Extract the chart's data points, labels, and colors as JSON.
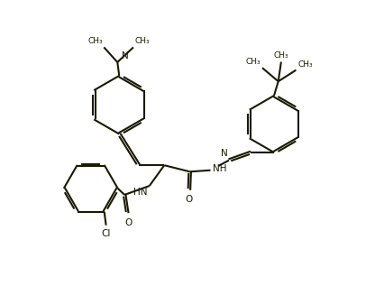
{
  "bg_color": "#ffffff",
  "line_color": "#1a1a00",
  "lw": 1.5,
  "figsize": [
    4.26,
    3.27
  ],
  "dpi": 100,
  "xlim": [
    0.0,
    10.5
  ],
  "ylim": [
    0.2,
    8.5
  ],
  "fs": 7.5,
  "fs_sm": 6.5
}
